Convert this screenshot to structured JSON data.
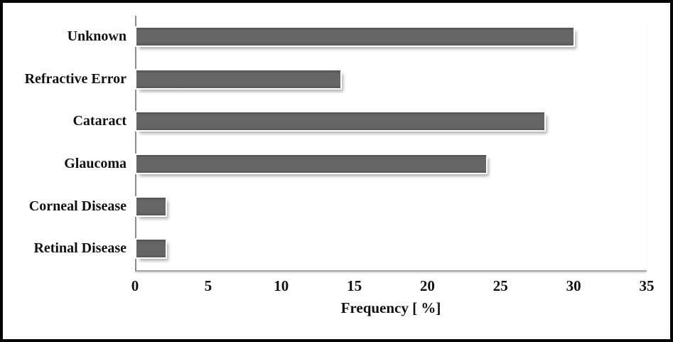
{
  "chart_data": {
    "type": "bar",
    "orientation": "horizontal",
    "categories": [
      "Unknown",
      "Refractive Error",
      "Cataract",
      "Glaucoma",
      "Corneal Disease",
      "Retinal Disease"
    ],
    "values": [
      30,
      14,
      28,
      24,
      2,
      2
    ],
    "title": "",
    "xlabel": "Frequency [ %]",
    "ylabel": "",
    "xlim": [
      0,
      35
    ],
    "x_ticks": [
      0,
      5,
      10,
      15,
      20,
      25,
      30,
      35
    ],
    "grid": false,
    "legend": false,
    "bar_color": "#616161",
    "axis_line_color": "#8c8c8c",
    "text_color": "#111111",
    "frame_border_color": "#050505"
  }
}
